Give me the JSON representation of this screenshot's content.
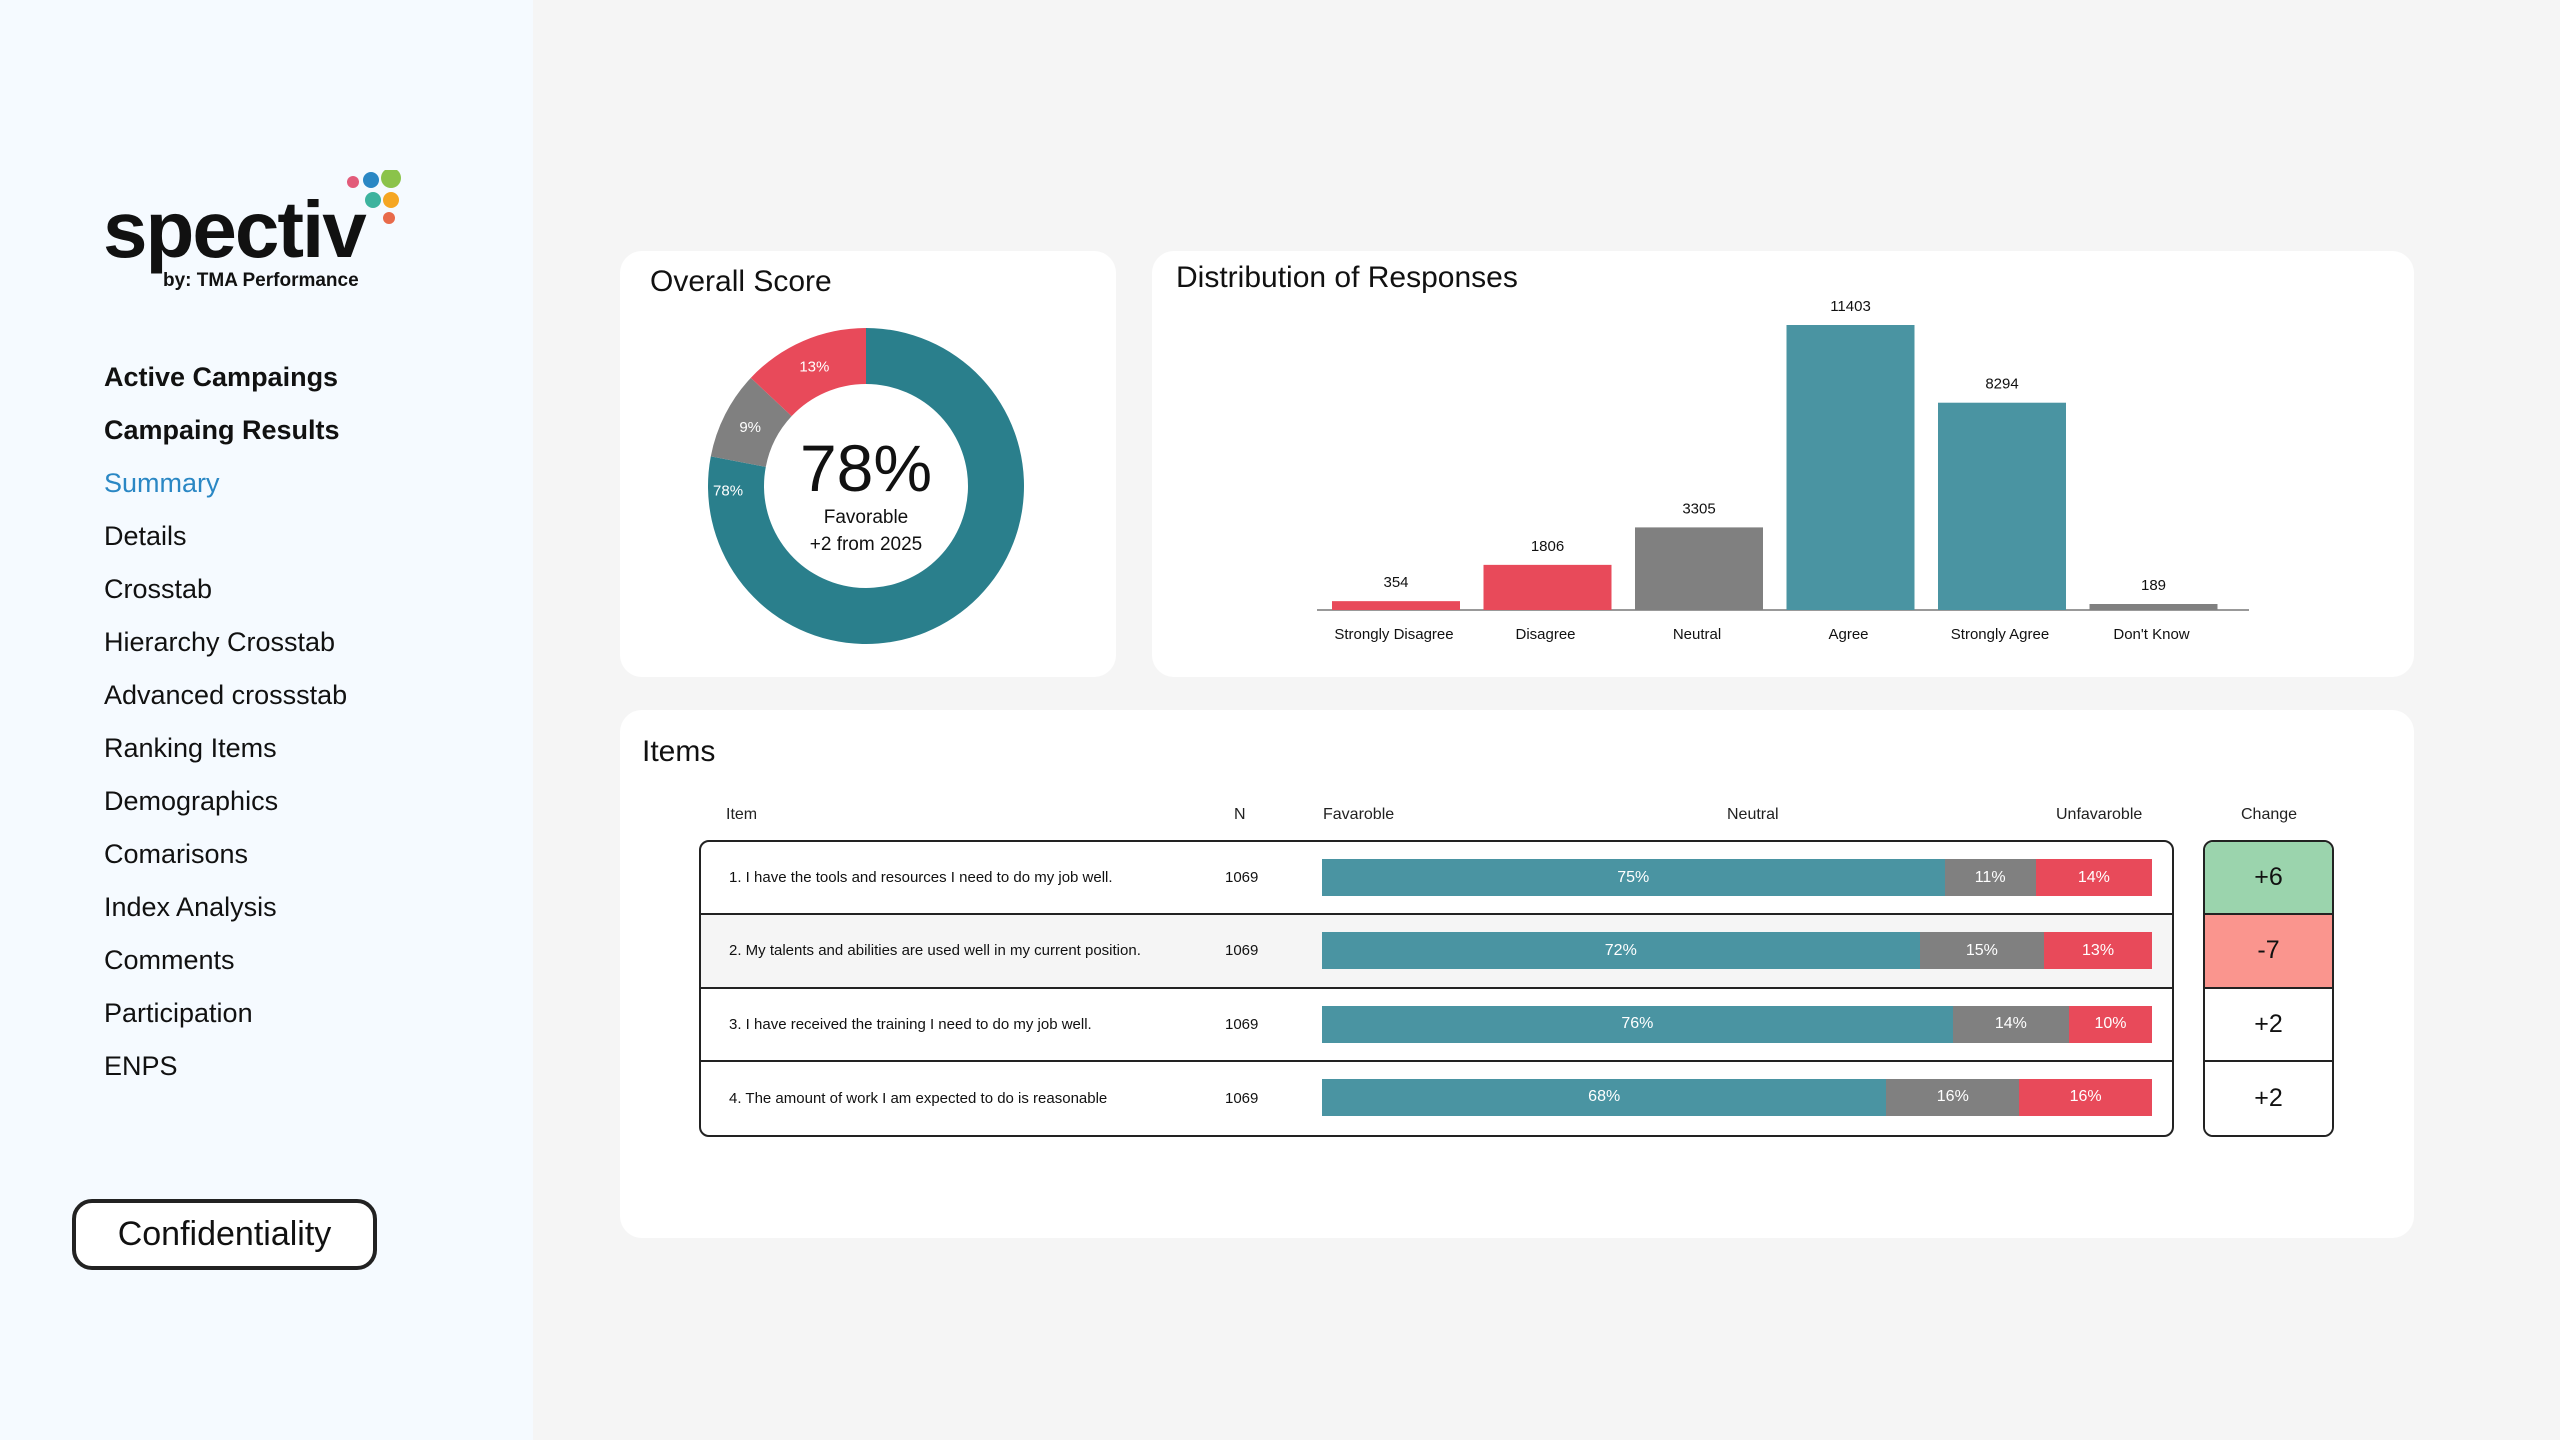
{
  "brand": {
    "name": "spectiv",
    "tagline": "by: TMA Performance",
    "dot_colors": [
      "#e25b7a",
      "#2a87c4",
      "#8bc34a",
      "#3db39e",
      "#f5a623",
      "#e86a4a"
    ]
  },
  "sidebar": {
    "items": [
      {
        "label": "Active Campaings",
        "style": "bold"
      },
      {
        "label": "Campaing Results",
        "style": "bold"
      },
      {
        "label": "Summary",
        "style": "active"
      },
      {
        "label": "Details",
        "style": "normal"
      },
      {
        "label": "Crosstab",
        "style": "normal"
      },
      {
        "label": "Hierarchy Crosstab",
        "style": "normal"
      },
      {
        "label": "Advanced crossstab",
        "style": "normal"
      },
      {
        "label": "Ranking Items",
        "style": "normal"
      },
      {
        "label": "Demographics",
        "style": "normal"
      },
      {
        "label": "Comarisons",
        "style": "normal"
      },
      {
        "label": "Index Analysis",
        "style": "normal"
      },
      {
        "label": "Comments",
        "style": "normal"
      },
      {
        "label": "Participation",
        "style": "normal"
      },
      {
        "label": "ENPS",
        "style": "normal"
      }
    ],
    "confidentiality_label": "Confidentiality"
  },
  "colors": {
    "teal": "#2a7f8c",
    "teal_bar": "#4a94a2",
    "gray": "#808080",
    "red": "#e84a5a",
    "positive_bg": "#9bd4ad",
    "negative_bg": "#fa958e"
  },
  "overall": {
    "title": "Overall Score",
    "score": "78%",
    "caption": "Favorable",
    "delta": "+2 from 2025",
    "chart_data": {
      "type": "pie",
      "slices": [
        {
          "label": "78%",
          "value": 78,
          "color": "#2a7f8c"
        },
        {
          "label": "9%",
          "value": 9,
          "color": "#808080"
        },
        {
          "label": "13%",
          "value": 13,
          "color": "#e84a5a"
        }
      ]
    }
  },
  "distribution": {
    "title": "Distribution of Responses",
    "chart_data": {
      "type": "bar",
      "categories": [
        "Strongly Disagree",
        "Disagree",
        "Neutral",
        "Agree",
        "Strongly Agree",
        "Don't Know"
      ],
      "values": [
        354,
        1806,
        3305,
        11403,
        8294,
        189
      ],
      "colors": [
        "#e84a5a",
        "#e84a5a",
        "#808080",
        "#4a94a2",
        "#4a94a2",
        "#808080"
      ],
      "ylim": [
        0,
        11403
      ]
    }
  },
  "items": {
    "title": "Items",
    "headers": {
      "item": "Item",
      "n": "N",
      "favorable": "Favaroble",
      "neutral": "Neutral",
      "unfavorable": "Unfavaroble",
      "change": "Change"
    },
    "chart_data": {
      "type": "bar",
      "stacked": true,
      "orientation": "horizontal",
      "categories": [
        "1. I have the tools and resources I need to do my job well.",
        "2. My talents and abilities are used well in my current position.",
        "3. I have received the training I need to do my job well.",
        "4. The amount of work I am expected to do is reasonable"
      ],
      "series": [
        {
          "name": "Favaroble",
          "values": [
            75,
            72,
            76,
            68
          ],
          "color": "#4a94a2"
        },
        {
          "name": "Neutral",
          "values": [
            11,
            15,
            14,
            16
          ],
          "color": "#808080"
        },
        {
          "name": "Unfavaroble",
          "values": [
            14,
            13,
            10,
            16
          ],
          "color": "#e84a5a"
        }
      ]
    },
    "rows": [
      {
        "question": "1. I have the tools and resources I need to do my job well.",
        "n": "1069",
        "fav": "75%",
        "neu": "11%",
        "unf": "14%",
        "change": "+6",
        "change_bg": "#9bd4ad"
      },
      {
        "question": "2. My talents and abilities are used well in my current position.",
        "n": "1069",
        "fav": "72%",
        "neu": "15%",
        "unf": "13%",
        "change": "-7",
        "change_bg": "#fa958e"
      },
      {
        "question": "3. I have received the training I need to do my job well.",
        "n": "1069",
        "fav": "76%",
        "neu": "14%",
        "unf": "10%",
        "change": "+2",
        "change_bg": "#ffffff"
      },
      {
        "question": "4. The amount of work I am expected to do is reasonable",
        "n": "1069",
        "fav": "68%",
        "neu": "16%",
        "unf": "16%",
        "change": "+2",
        "change_bg": "#ffffff"
      }
    ]
  }
}
